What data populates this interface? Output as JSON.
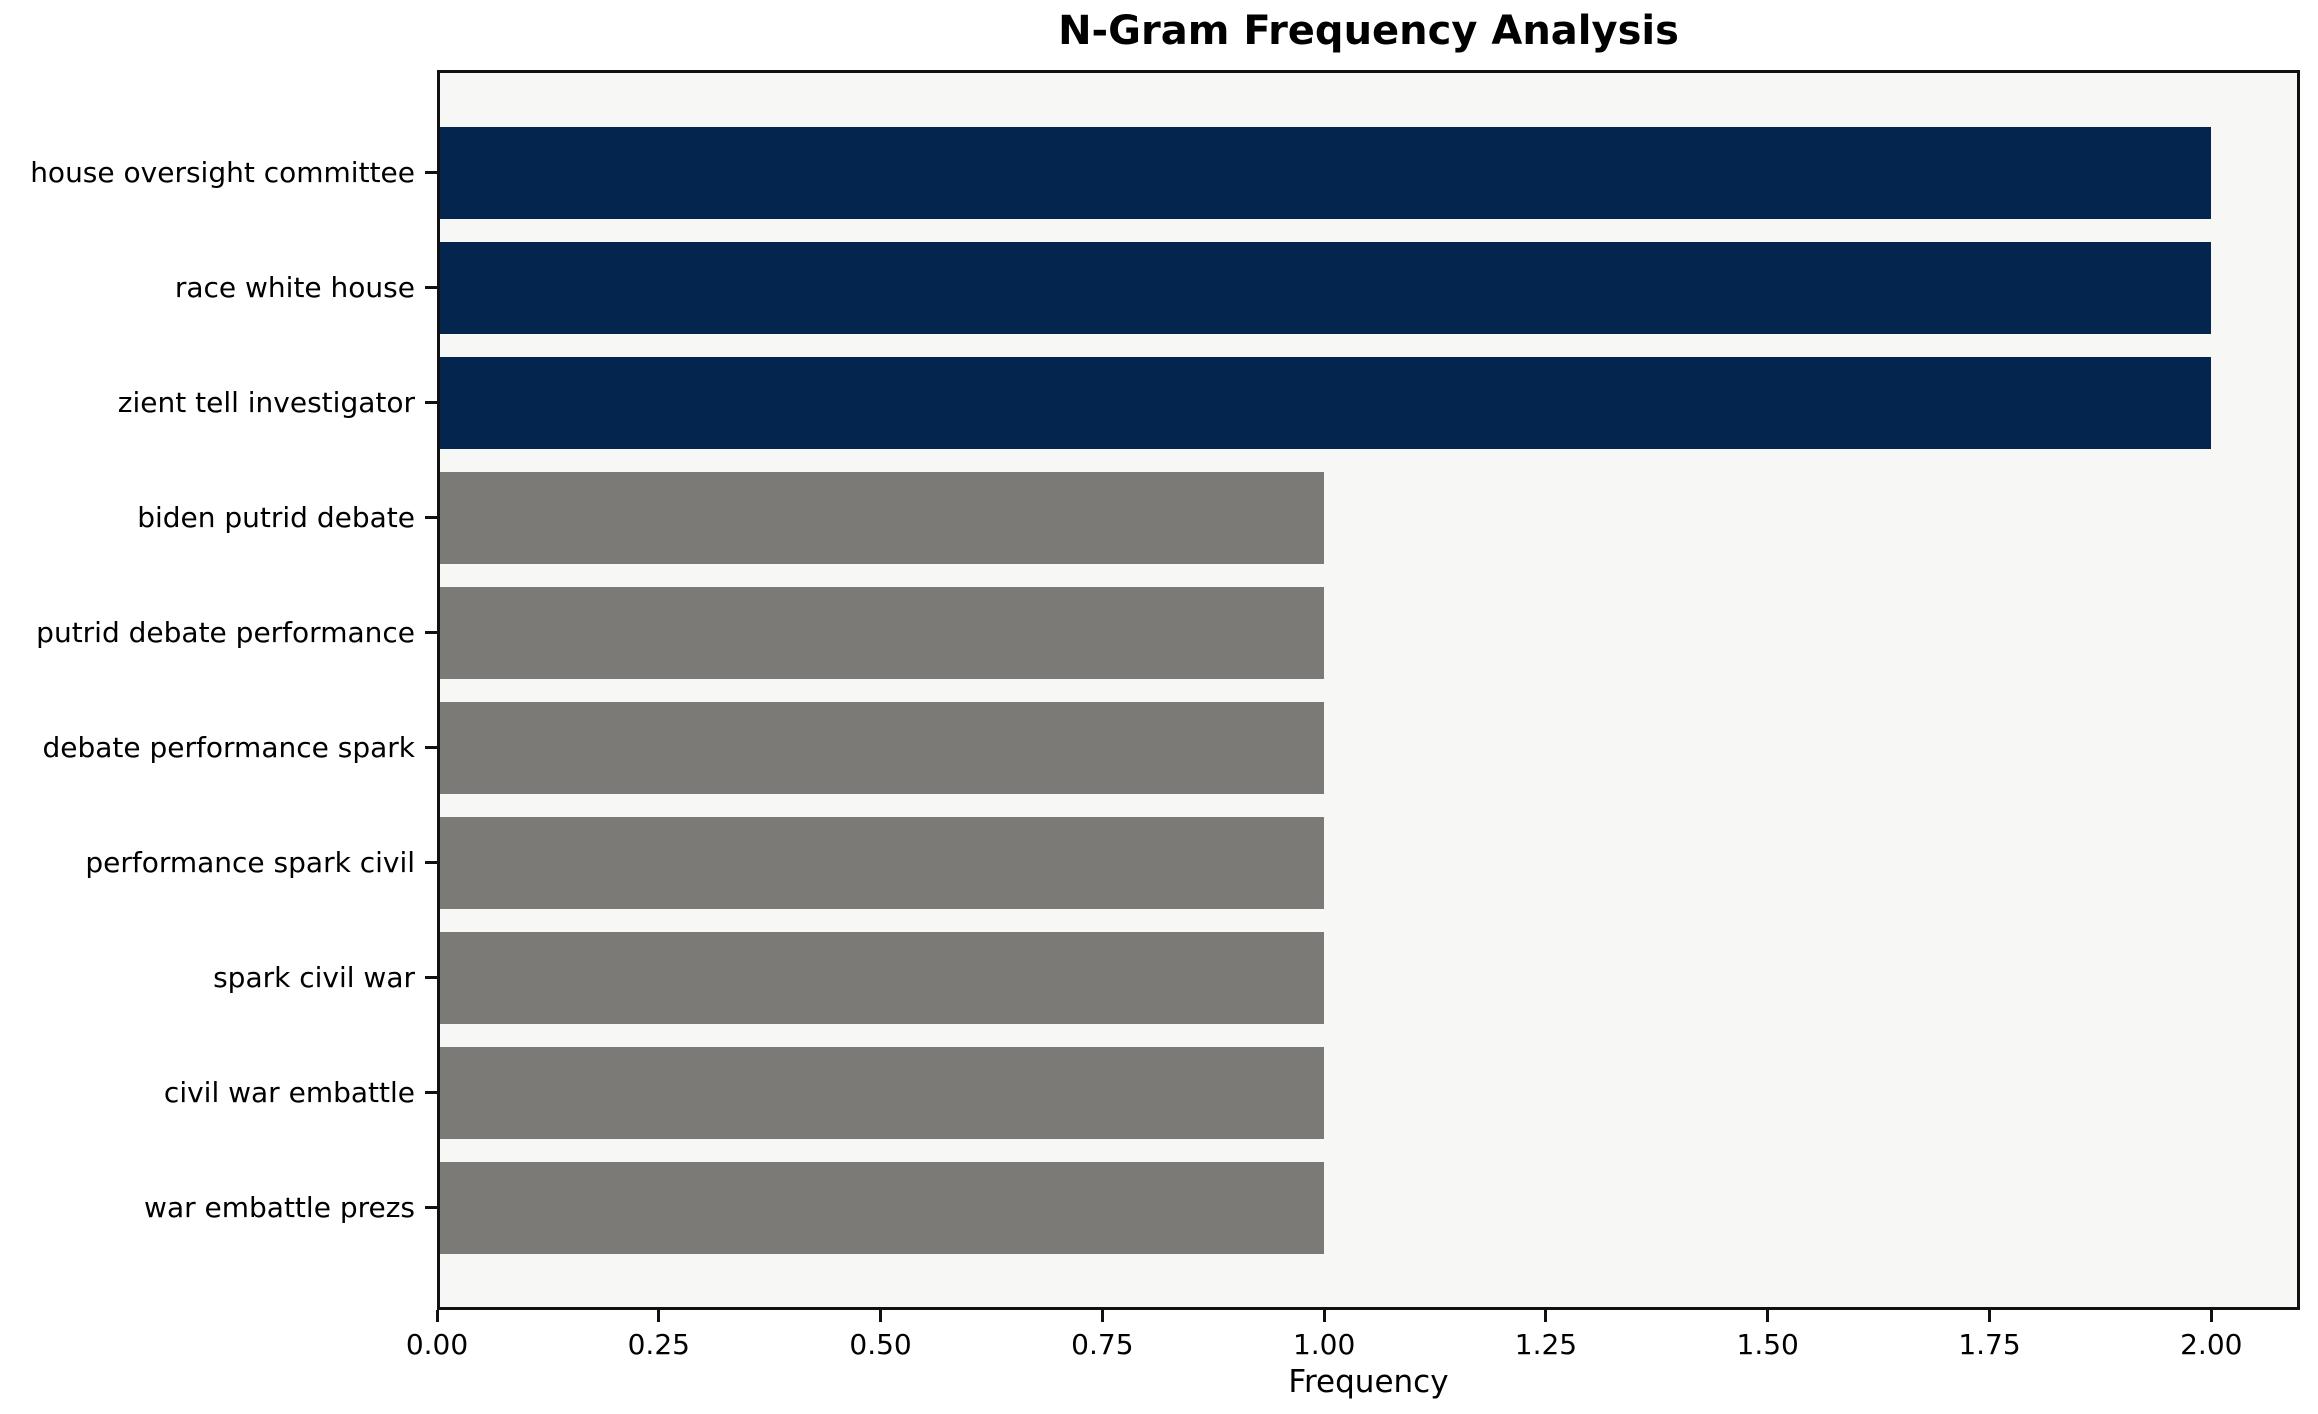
{
  "chart_data": {
    "type": "bar",
    "orientation": "horizontal",
    "title": "N-Gram Frequency Analysis",
    "xlabel": "Frequency",
    "ylabel": "",
    "categories": [
      "house oversight committee",
      "race white house",
      "zient tell investigator",
      "biden putrid debate",
      "putrid debate performance",
      "debate performance spark",
      "performance spark civil",
      "spark civil war",
      "civil war embattle",
      "war embattle prezs"
    ],
    "values": [
      2,
      2,
      2,
      1,
      1,
      1,
      1,
      1,
      1,
      1
    ],
    "bar_colors": [
      "#03254e",
      "#03254e",
      "#03254e",
      "#7b7a76",
      "#7b7a76",
      "#7b7a76",
      "#7b7a76",
      "#7b7a76",
      "#7b7a76",
      "#7b7a76"
    ],
    "xlim": [
      0,
      2.1
    ],
    "xticks": {
      "values": [
        0,
        0.25,
        0.5,
        0.75,
        1.0,
        1.25,
        1.5,
        1.75,
        2.0
      ],
      "labels": [
        "0.00",
        "0.25",
        "0.50",
        "0.75",
        "1.00",
        "1.25",
        "1.50",
        "1.75",
        "2.00"
      ]
    },
    "grid": false,
    "legend": false,
    "colors": {
      "high_freq_bar": "#03254e",
      "low_freq_bar": "#7b7a76",
      "plot_background": "#f7f7f6",
      "figure_background": "#ffffff",
      "frame": "#111111",
      "text": "#000000"
    }
  }
}
